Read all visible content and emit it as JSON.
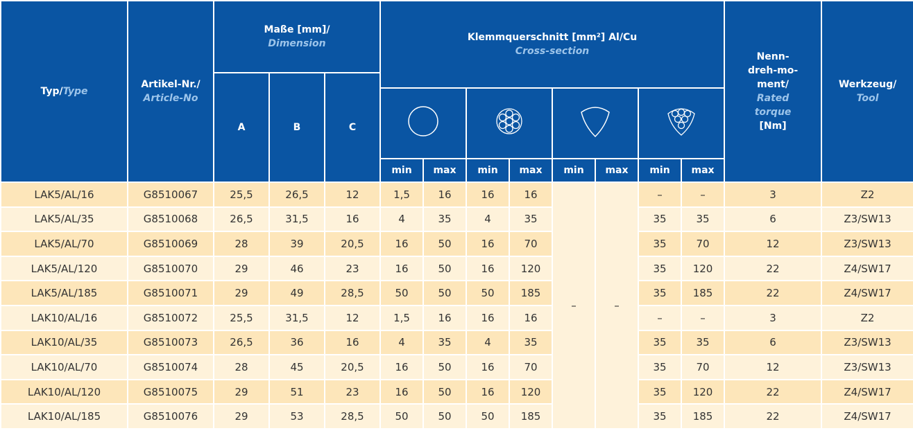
{
  "header": {
    "type": {
      "de": "Typ/",
      "en": "Type"
    },
    "article": {
      "de": "Artikel-Nr./",
      "en": "Article-No"
    },
    "dimension": {
      "de": "Maße [mm]/",
      "en": "Dimension",
      "cols": [
        "A",
        "B",
        "C"
      ]
    },
    "cross": {
      "de": "Klemmquerschnitt [mm²] Al/Cu",
      "en": "Cross-section",
      "sub": [
        "min",
        "max",
        "min",
        "max",
        "min",
        "max",
        "min",
        "max"
      ]
    },
    "torque": {
      "de": [
        "Nenn-",
        "dreh-mo-",
        "ment/"
      ],
      "en": "Rated torque",
      "unit": "[Nm]"
    },
    "tool": {
      "de": "Werkzeug/",
      "en": "Tool"
    }
  },
  "table": {
    "rows": [
      [
        "LAK5/AL/16",
        "G8510067",
        "25,5",
        "26,5",
        "12",
        "1,5",
        "16",
        "16",
        "16",
        "–",
        "–",
        "3",
        "Z2"
      ],
      [
        "LAK5/AL/35",
        "G8510068",
        "26,5",
        "31,5",
        "16",
        "4",
        "35",
        "4",
        "35",
        "35",
        "35",
        "6",
        "Z3/SW13"
      ],
      [
        "LAK5/AL/70",
        "G8510069",
        "28",
        "39",
        "20,5",
        "16",
        "50",
        "16",
        "70",
        "35",
        "70",
        "12",
        "Z3/SW13"
      ],
      [
        "LAK5/AL/120",
        "G8510070",
        "29",
        "46",
        "23",
        "16",
        "50",
        "16",
        "120",
        "35",
        "120",
        "22",
        "Z4/SW17"
      ],
      [
        "LAK5/AL/185",
        "G8510071",
        "29",
        "49",
        "28,5",
        "50",
        "50",
        "50",
        "185",
        "35",
        "185",
        "22",
        "Z4/SW17"
      ],
      [
        "LAK10/AL/16",
        "G8510072",
        "25,5",
        "31,5",
        "12",
        "1,5",
        "16",
        "16",
        "16",
        "–",
        "–",
        "3",
        "Z2"
      ],
      [
        "LAK10/AL/35",
        "G8510073",
        "26,5",
        "36",
        "16",
        "4",
        "35",
        "4",
        "35",
        "35",
        "35",
        "6",
        "Z3/SW13"
      ],
      [
        "LAK10/AL/70",
        "G8510074",
        "28",
        "45",
        "20,5",
        "16",
        "50",
        "16",
        "70",
        "35",
        "70",
        "12",
        "Z3/SW13"
      ],
      [
        "LAK10/AL/120",
        "G8510075",
        "29",
        "51",
        "23",
        "16",
        "50",
        "16",
        "120",
        "35",
        "120",
        "22",
        "Z4/SW17"
      ],
      [
        "LAK10/AL/185",
        "G8510076",
        "29",
        "53",
        "28,5",
        "50",
        "50",
        "50",
        "185",
        "35",
        "185",
        "22",
        "Z4/SW17"
      ]
    ],
    "sector_min": "–",
    "sector_max": "–"
  }
}
